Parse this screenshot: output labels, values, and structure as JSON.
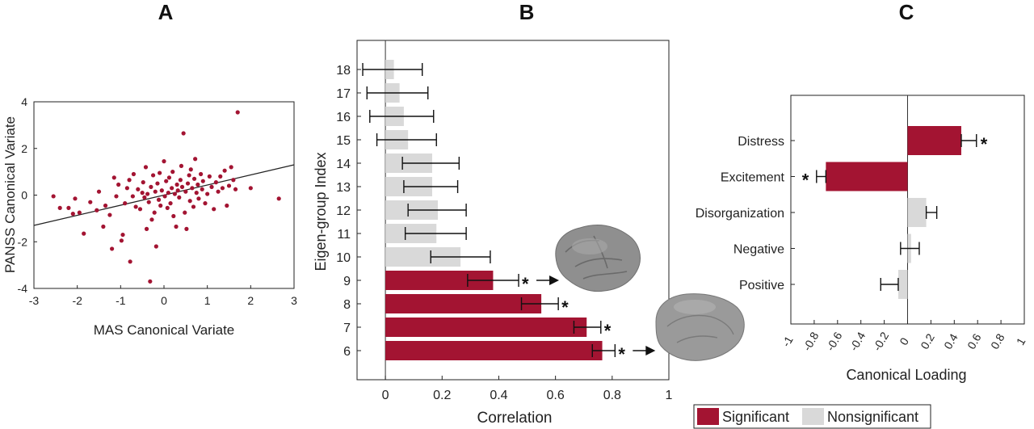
{
  "colors": {
    "significant": "#a31432",
    "nonsignificant": "#d9d9d9",
    "scatter": "#a31432",
    "axis": "#222222"
  },
  "legend": {
    "significant_label": "Significant",
    "nonsignificant_label": "Nonsignificant"
  },
  "chart_data": [
    {
      "panel": "A",
      "type": "scatter",
      "xlabel": "MAS Canonical Variate",
      "ylabel": "PANSS Canonical Variate",
      "xlim": [
        -3,
        3
      ],
      "ylim": [
        -4,
        4
      ],
      "xticks": [
        "-3",
        "-2",
        "-1",
        "0",
        "1",
        "2",
        "3"
      ],
      "yticks": [
        "4",
        "2",
        "0",
        "-2",
        "-4"
      ],
      "fit_line": {
        "x": [
          -3,
          3
        ],
        "y": [
          -1.3,
          1.3
        ]
      },
      "points": [
        [
          -2.55,
          -0.05
        ],
        [
          -2.4,
          -0.55
        ],
        [
          -2.2,
          -0.55
        ],
        [
          -2.1,
          -0.8
        ],
        [
          -2.05,
          -0.15
        ],
        [
          -1.95,
          -0.75
        ],
        [
          -1.85,
          -1.65
        ],
        [
          -1.7,
          -0.3
        ],
        [
          -1.55,
          -0.65
        ],
        [
          -1.5,
          0.15
        ],
        [
          -1.4,
          -1.35
        ],
        [
          -1.35,
          -0.45
        ],
        [
          -1.25,
          -0.85
        ],
        [
          -1.2,
          -2.3
        ],
        [
          -1.15,
          0.75
        ],
        [
          -1.1,
          -0.05
        ],
        [
          -1.05,
          0.45
        ],
        [
          -0.98,
          -1.95
        ],
        [
          -0.95,
          -1.7
        ],
        [
          -0.9,
          -0.35
        ],
        [
          -0.85,
          0.3
        ],
        [
          -0.8,
          0.65
        ],
        [
          -0.78,
          -2.85
        ],
        [
          -0.72,
          -0.05
        ],
        [
          -0.7,
          0.9
        ],
        [
          -0.65,
          -0.5
        ],
        [
          -0.6,
          0.25
        ],
        [
          -0.55,
          -0.6
        ],
        [
          -0.5,
          0.1
        ],
        [
          -0.48,
          0.55
        ],
        [
          -0.45,
          -0.1
        ],
        [
          -0.42,
          1.2
        ],
        [
          -0.4,
          -1.45
        ],
        [
          -0.38,
          0.05
        ],
        [
          -0.35,
          -0.3
        ],
        [
          -0.32,
          -3.7
        ],
        [
          -0.3,
          0.35
        ],
        [
          -0.28,
          -1.05
        ],
        [
          -0.25,
          0.85
        ],
        [
          -0.22,
          -0.75
        ],
        [
          -0.2,
          0.15
        ],
        [
          -0.18,
          -2.2
        ],
        [
          -0.15,
          0.5
        ],
        [
          -0.12,
          -0.2
        ],
        [
          -0.1,
          0.95
        ],
        [
          -0.08,
          -0.45
        ],
        [
          -0.05,
          0.2
        ],
        [
          0.0,
          1.45
        ],
        [
          0.02,
          -0.05
        ],
        [
          0.05,
          0.6
        ],
        [
          0.08,
          -0.55
        ],
        [
          0.1,
          0.1
        ],
        [
          0.12,
          0.75
        ],
        [
          0.15,
          -0.35
        ],
        [
          0.18,
          0.3
        ],
        [
          0.2,
          1.0
        ],
        [
          0.22,
          -0.9
        ],
        [
          0.25,
          0.05
        ],
        [
          0.28,
          -1.35
        ],
        [
          0.3,
          0.45
        ],
        [
          0.32,
          0.2
        ],
        [
          0.35,
          -0.1
        ],
        [
          0.38,
          0.65
        ],
        [
          0.4,
          1.25
        ],
        [
          0.42,
          0.35
        ],
        [
          0.45,
          2.65
        ],
        [
          0.48,
          -0.75
        ],
        [
          0.5,
          0.15
        ],
        [
          0.52,
          -1.45
        ],
        [
          0.55,
          0.5
        ],
        [
          0.58,
          0.85
        ],
        [
          0.6,
          -0.25
        ],
        [
          0.62,
          1.1
        ],
        [
          0.65,
          0.3
        ],
        [
          0.68,
          -0.5
        ],
        [
          0.7,
          0.7
        ],
        [
          0.72,
          1.55
        ],
        [
          0.75,
          0.1
        ],
        [
          0.78,
          0.45
        ],
        [
          0.8,
          -0.15
        ],
        [
          0.85,
          0.9
        ],
        [
          0.88,
          0.25
        ],
        [
          0.9,
          0.6
        ],
        [
          0.95,
          -0.35
        ],
        [
          1.0,
          0.05
        ],
        [
          1.05,
          0.8
        ],
        [
          1.1,
          0.35
        ],
        [
          1.15,
          -0.6
        ],
        [
          1.2,
          0.55
        ],
        [
          1.25,
          0.15
        ],
        [
          1.3,
          0.8
        ],
        [
          1.35,
          0.3
        ],
        [
          1.4,
          1.05
        ],
        [
          1.45,
          -0.45
        ],
        [
          1.5,
          0.4
        ],
        [
          1.55,
          1.2
        ],
        [
          1.6,
          0.65
        ],
        [
          1.65,
          0.25
        ],
        [
          1.7,
          3.55
        ],
        [
          2.0,
          0.3
        ],
        [
          2.65,
          -0.15
        ]
      ]
    },
    {
      "panel": "B",
      "type": "bar",
      "orientation": "horizontal",
      "xlabel": "Correlation",
      "ylabel": "Eigen-group Index",
      "xlim": [
        -0.1,
        1.0
      ],
      "xticks": [
        "0",
        "0.2",
        "0.4",
        "0.6",
        "0.8",
        "1"
      ],
      "categories": [
        "18",
        "17",
        "16",
        "15",
        "14",
        "13",
        "12",
        "11",
        "10",
        "9",
        "8",
        "7",
        "6"
      ],
      "values": [
        0.03,
        0.05,
        0.065,
        0.08,
        0.165,
        0.165,
        0.185,
        0.18,
        0.265,
        0.38,
        0.55,
        0.71,
        0.765
      ],
      "error_low": [
        -0.08,
        -0.065,
        -0.055,
        -0.03,
        0.06,
        0.065,
        0.08,
        0.07,
        0.16,
        0.29,
        0.48,
        0.665,
        0.73
      ],
      "error_high": [
        0.13,
        0.15,
        0.17,
        0.18,
        0.26,
        0.255,
        0.285,
        0.285,
        0.37,
        0.47,
        0.61,
        0.76,
        0.81
      ],
      "significant": [
        false,
        false,
        false,
        false,
        false,
        false,
        false,
        false,
        false,
        true,
        true,
        true,
        true
      ],
      "star": "*",
      "arrows_on": [
        "9",
        "6"
      ]
    },
    {
      "panel": "C",
      "type": "bar",
      "orientation": "horizontal",
      "xlabel": "Canonical Loading",
      "xlim": [
        -1,
        1
      ],
      "xticks": [
        "-1",
        "-0.8",
        "-0.6",
        "-0.4",
        "-0.2",
        "0",
        "0.2",
        "0.4",
        "0.6",
        "0.8",
        "1"
      ],
      "categories": [
        "Distress",
        "Excitement",
        "Disorganization",
        "Negative",
        "Positive"
      ],
      "values": [
        0.46,
        -0.7,
        0.16,
        0.03,
        -0.08
      ],
      "error_low": [
        0.46,
        -0.78,
        0.16,
        -0.06,
        -0.23
      ],
      "error_high": [
        0.59,
        -0.7,
        0.25,
        0.1,
        -0.08
      ],
      "significant": [
        true,
        true,
        false,
        false,
        false
      ],
      "star": "*"
    }
  ]
}
